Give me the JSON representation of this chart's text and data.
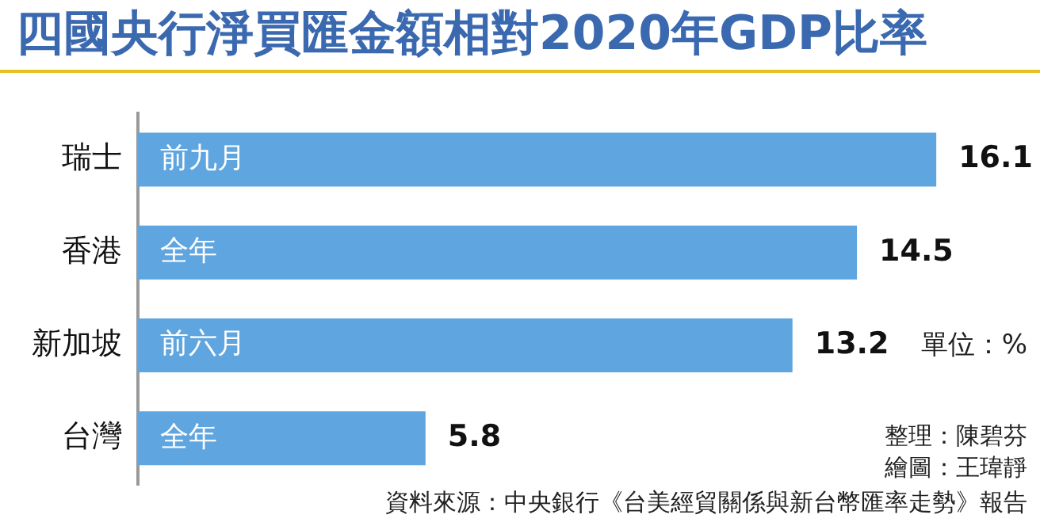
{
  "chart_data": {
    "type": "bar",
    "orientation": "horizontal",
    "title": "四國央行淨買匯金額相對2020年GDP比率",
    "categories": [
      "瑞士",
      "香港",
      "新加坡",
      "台灣"
    ],
    "values": [
      16.1,
      14.5,
      13.2,
      5.8
    ],
    "color": "#5fa5df",
    "tick_labels": "y",
    "data_labels": true,
    "annotations": [
      "前九月",
      "全年",
      "前六月",
      "全年",
      "單位：%",
      "整理：陳碧芬",
      "繪圖：王瑋靜",
      "資料來源：中央銀行《台美經貿關係與新台幣匯率走勢》報告"
    ]
  }
}
